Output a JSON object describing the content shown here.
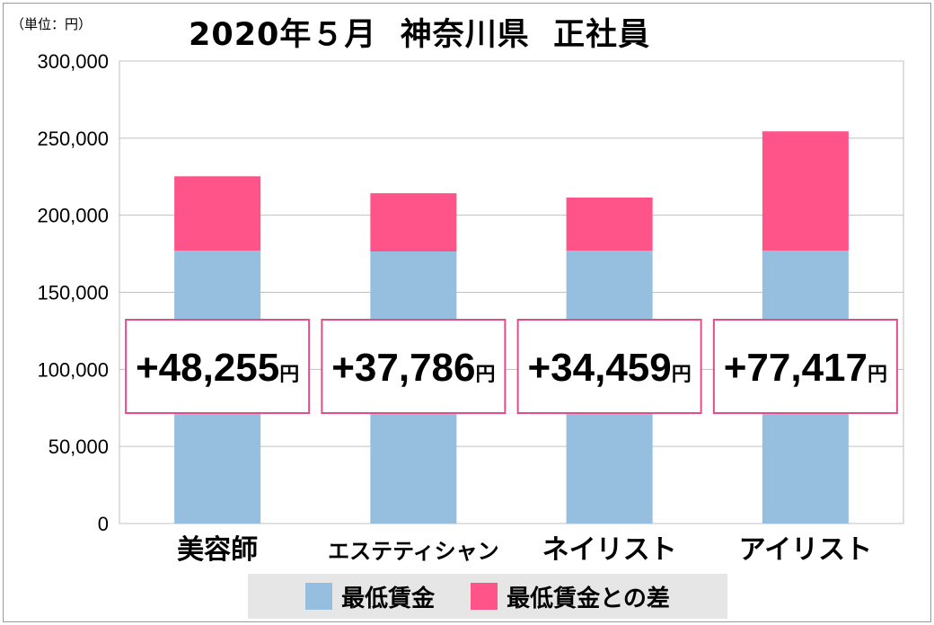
{
  "unit_label": "（単位：円）",
  "title": "2020年５月  神奈川県  正社員",
  "colors": {
    "min_wage": "#96bfdf",
    "difference": "#fe5489",
    "grid": "#c0c0c0",
    "label_border": "#e24e8a"
  },
  "legend": [
    {
      "label": "最低賃金",
      "color": "#96bfdf"
    },
    {
      "label": "最低賃金との差",
      "color": "#fe5489"
    }
  ],
  "chart_data": {
    "type": "bar",
    "stacked": true,
    "categories": [
      "美容師",
      "エステティシャン",
      "ネイリスト",
      "アイリスト"
    ],
    "series": [
      {
        "name": "最低賃金",
        "values": [
          177000,
          176500,
          177000,
          177000
        ]
      },
      {
        "name": "最低賃金との差",
        "values": [
          48255,
          37786,
          34459,
          77417
        ]
      }
    ],
    "data_labels": [
      "+48,255",
      "+37,786",
      "+34,459",
      "+77,417"
    ],
    "data_label_unit": "円",
    "yticks": [
      "0",
      "50,000",
      "100,000",
      "150,000",
      "200,000",
      "250,000",
      "300,000"
    ],
    "ylim": [
      0,
      300000
    ],
    "grid": true,
    "legend_position": "bottom"
  }
}
